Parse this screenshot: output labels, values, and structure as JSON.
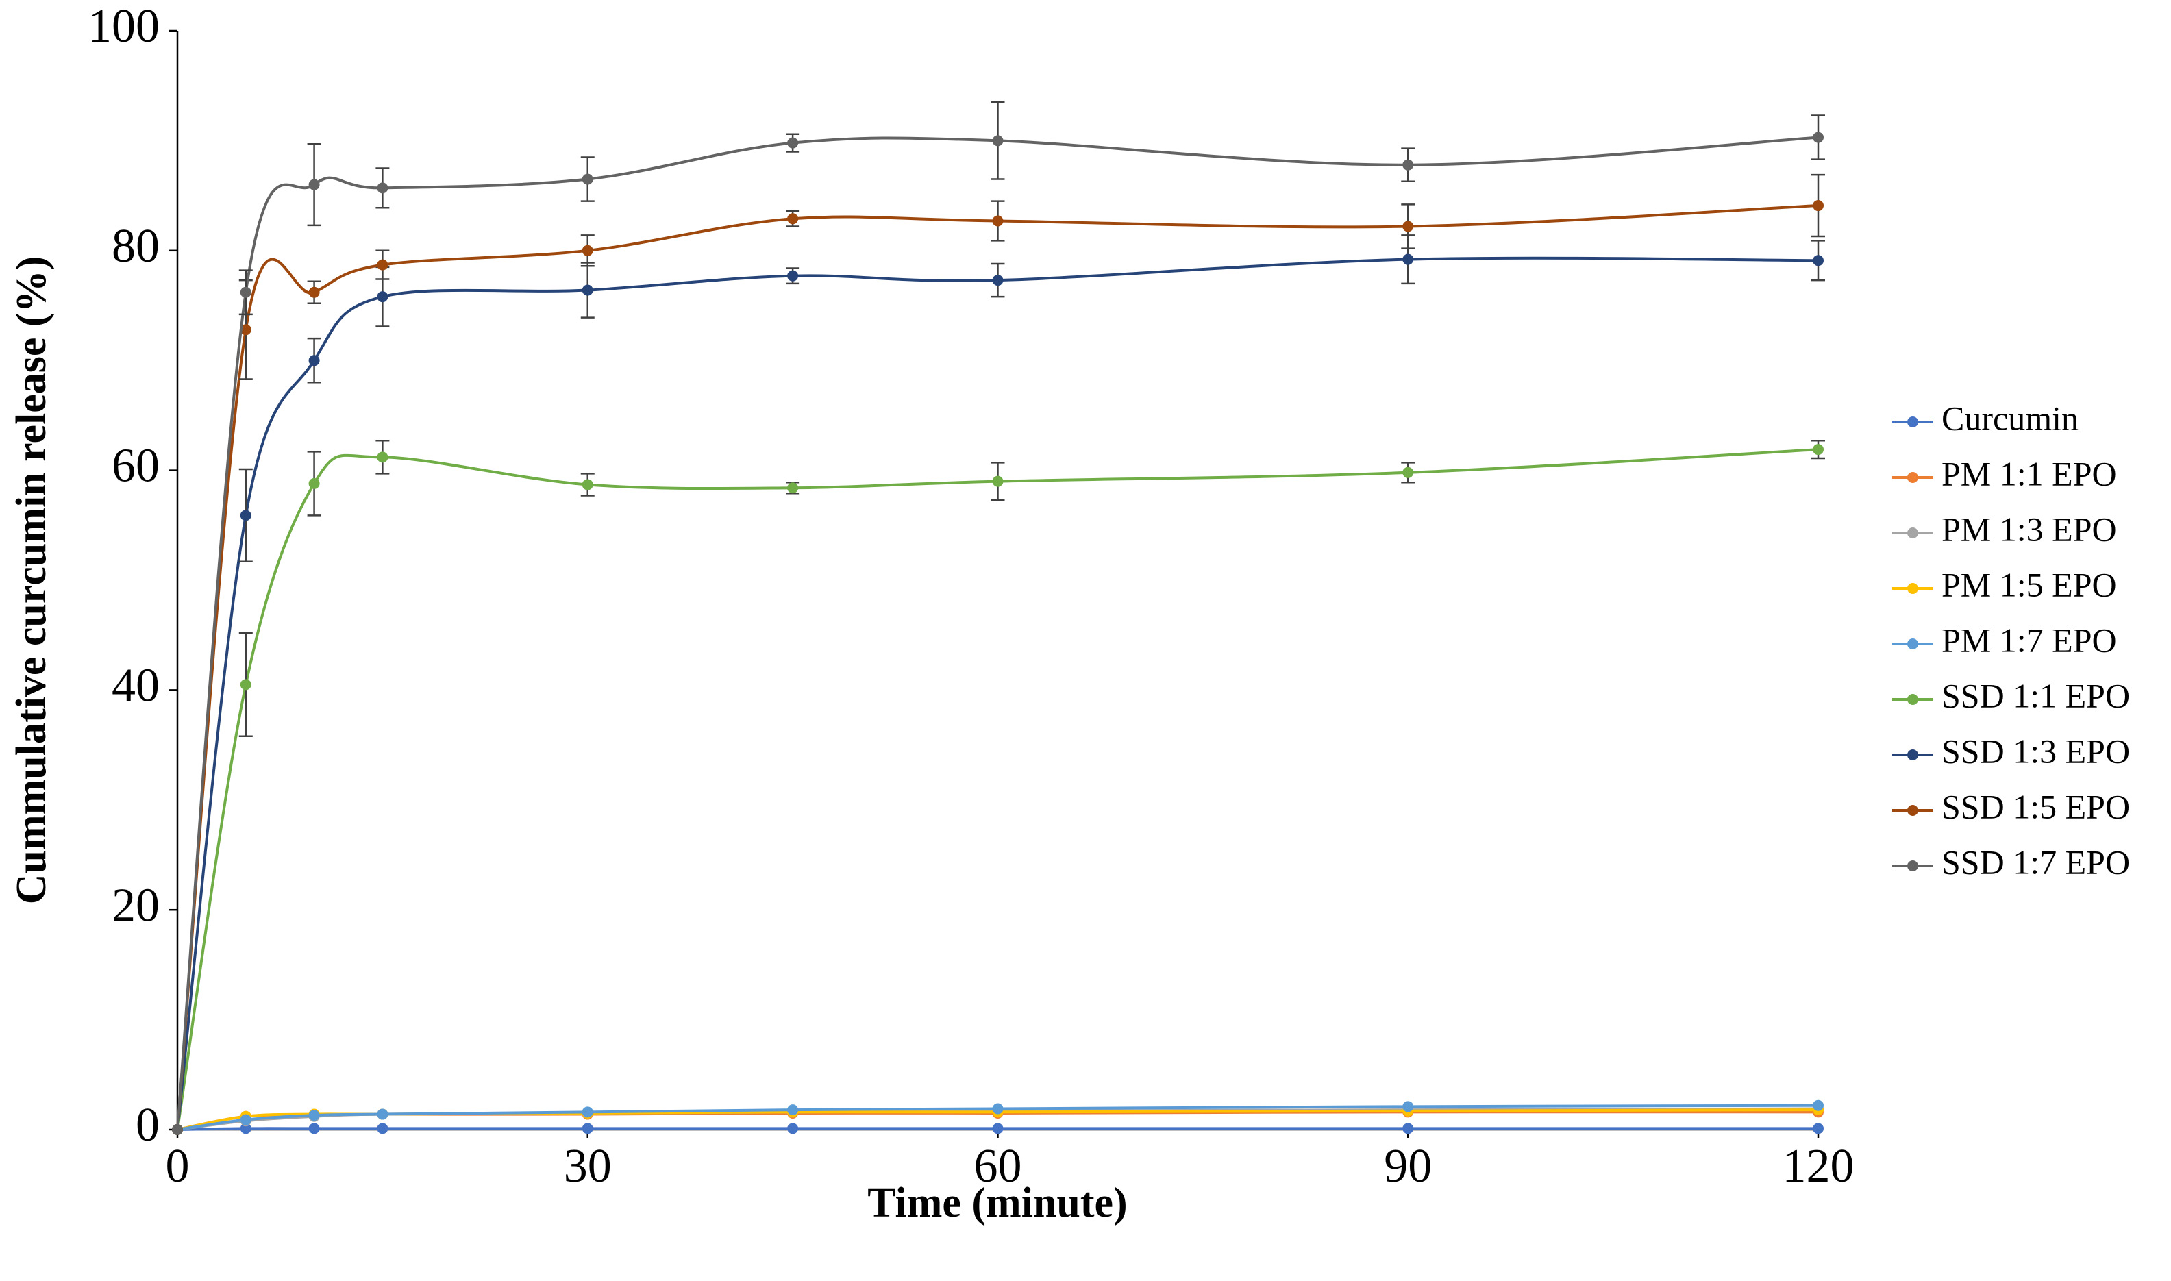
{
  "chart_data": {
    "type": "line",
    "xlabel": "Time (minute)",
    "ylabel": "Cummulative curcumin release (%)",
    "x": [
      0,
      5,
      10,
      15,
      30,
      45,
      60,
      90,
      120
    ],
    "xlim": [
      0,
      120
    ],
    "xticks": [
      0,
      30,
      60,
      90,
      120
    ],
    "ylim": [
      0,
      100
    ],
    "yticks": [
      0,
      20,
      40,
      60,
      80,
      100
    ],
    "grid": false,
    "legend": "right",
    "smooth": true,
    "series": [
      {
        "name": "Curcumin",
        "color": "#4472c4",
        "values": [
          0,
          0.1,
          0.1,
          0.1,
          0.1,
          0.1,
          0.1,
          0.1,
          0.1
        ]
      },
      {
        "name": "PM 1:1 EPO",
        "color": "#ed7d31",
        "values": [
          0,
          1.2,
          1.3,
          1.4,
          1.4,
          1.5,
          1.5,
          1.6,
          1.6
        ]
      },
      {
        "name": "PM 1:3 EPO",
        "color": "#a5a5a5",
        "values": [
          0,
          0.8,
          1.2,
          1.4,
          1.5,
          1.6,
          1.7,
          1.8,
          1.9
        ]
      },
      {
        "name": "PM 1:5 EPO",
        "color": "#ffc000",
        "values": [
          0,
          1.2,
          1.4,
          1.4,
          1.5,
          1.6,
          1.6,
          1.7,
          1.8
        ]
      },
      {
        "name": "PM 1:7 EPO",
        "color": "#5b9bd5",
        "values": [
          0,
          0.9,
          1.3,
          1.4,
          1.6,
          1.8,
          1.9,
          2.1,
          2.2
        ]
      },
      {
        "name": "SSD 1:1 EPO",
        "color": "#70ad47",
        "values": [
          0,
          40.5,
          58.8,
          61.2,
          58.7,
          58.4,
          59,
          59.8,
          61.9
        ],
        "errors": [
          null,
          4.7,
          2.9,
          1.5,
          1,
          0.5,
          1.7,
          0.9,
          0.8
        ]
      },
      {
        "name": "SSD 1:3 EPO",
        "color": "#264478",
        "values": [
          0,
          55.9,
          70,
          75.8,
          76.4,
          77.7,
          77.3,
          79.2,
          79.1
        ],
        "errors": [
          null,
          4.2,
          2,
          2.7,
          2.5,
          0.7,
          1.5,
          2.2,
          1.8
        ]
      },
      {
        "name": "SSD 1:5 EPO",
        "color": "#9e480e",
        "values": [
          0,
          72.8,
          76.2,
          78.7,
          80,
          82.9,
          82.7,
          82.2,
          84.1
        ],
        "errors": [
          null,
          4.5,
          1,
          1.3,
          1.4,
          0.7,
          1.8,
          2,
          2.8
        ]
      },
      {
        "name": "SSD 1:7 EPO",
        "color": "#636363",
        "values": [
          0,
          76.2,
          86,
          85.7,
          86.5,
          89.8,
          90,
          87.8,
          90.3
        ],
        "errors": [
          null,
          2,
          3.7,
          1.8,
          2,
          0.8,
          3.5,
          1.5,
          2
        ]
      }
    ]
  }
}
